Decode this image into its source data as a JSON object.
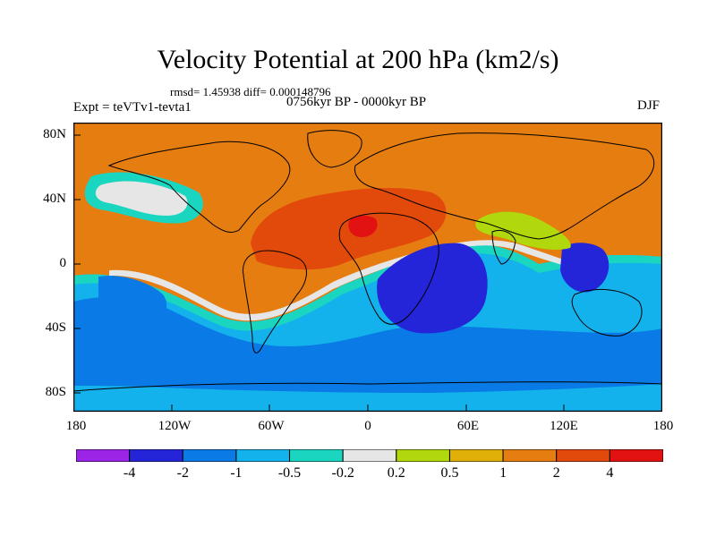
{
  "title": "Velocity Potential at 200 hPa (km2/s)",
  "stats_text": "rmsd= 1.45938 diff= 0.000148796",
  "period_text": "0756kyr BP - 0000kyr BP",
  "left_label": "Expt = teVTv1-tevta1",
  "right_label": "DJF",
  "lat_ticks": [
    "80N",
    "40N",
    "0",
    "40S",
    "80S"
  ],
  "lon_ticks": [
    "180",
    "120W",
    "60W",
    "0",
    "60E",
    "120E",
    "180"
  ],
  "colorbar": {
    "colors": [
      "#9b24e6",
      "#2424d8",
      "#0a7ae6",
      "#13b2ec",
      "#1ad6c0",
      "#e6e6e6",
      "#b0d80c",
      "#e0b008",
      "#e57d10",
      "#e24a0c",
      "#e21212"
    ],
    "labels": [
      "-4",
      "-2",
      "-1",
      "-0.5",
      "-0.2",
      "0.2",
      "0.5",
      "1",
      "2",
      "4"
    ]
  }
}
